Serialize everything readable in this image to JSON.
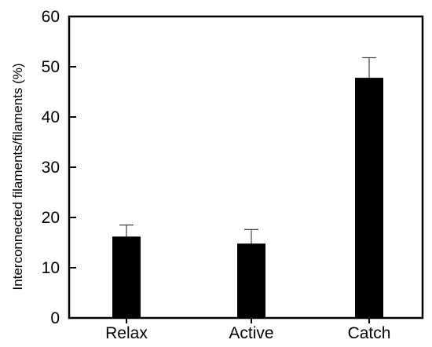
{
  "chart_data": {
    "type": "bar",
    "title": "",
    "xlabel": "",
    "ylabel": "Interconnected filaments/filaments (%)",
    "categories": [
      "Relax",
      "Active",
      "Catch"
    ],
    "values": [
      16.2,
      14.8,
      47.8
    ],
    "error": [
      2.3,
      2.8,
      4.0
    ],
    "ylim": [
      0,
      60
    ],
    "yticks": [
      0,
      10,
      20,
      30,
      40,
      50,
      60
    ],
    "bar_color": "#000000",
    "grid": false,
    "legend": "none"
  }
}
